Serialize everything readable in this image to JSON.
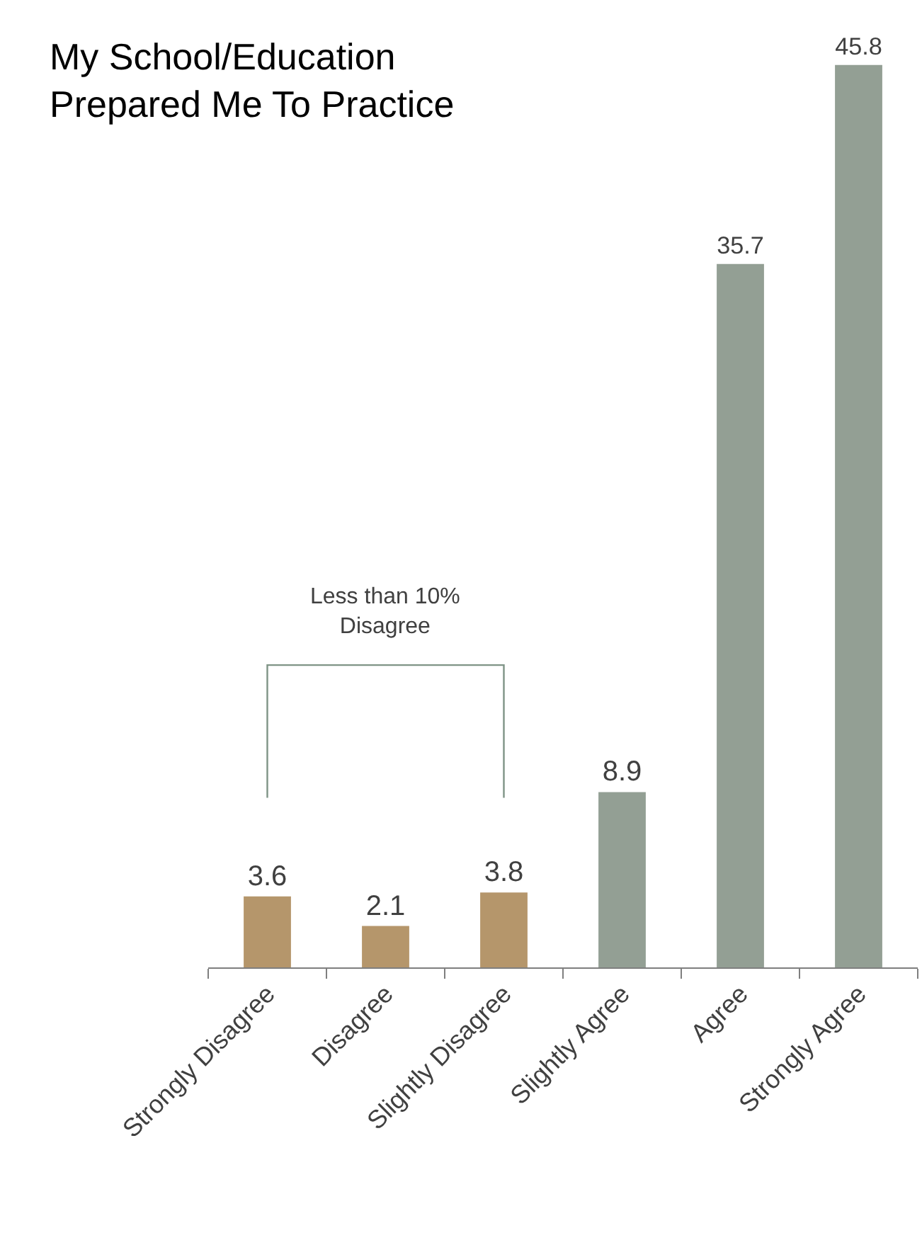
{
  "chart_data": {
    "type": "bar",
    "title": "My School/Education\nPrepared Me To Practice",
    "categories": [
      "Strongly Disagree",
      "Disagree",
      "Slightly Disagree",
      "Slightly Agree",
      "Agree",
      "Strongly Agree"
    ],
    "values": [
      3.6,
      2.1,
      3.8,
      8.9,
      35.7,
      45.8
    ],
    "colors": [
      "#b5966b",
      "#b5966b",
      "#b5966b",
      "#939f94",
      "#939f94",
      "#939f94"
    ],
    "data_labels": true,
    "legend": false,
    "annotations": [
      "Less than 10%\nDisagree"
    ]
  }
}
